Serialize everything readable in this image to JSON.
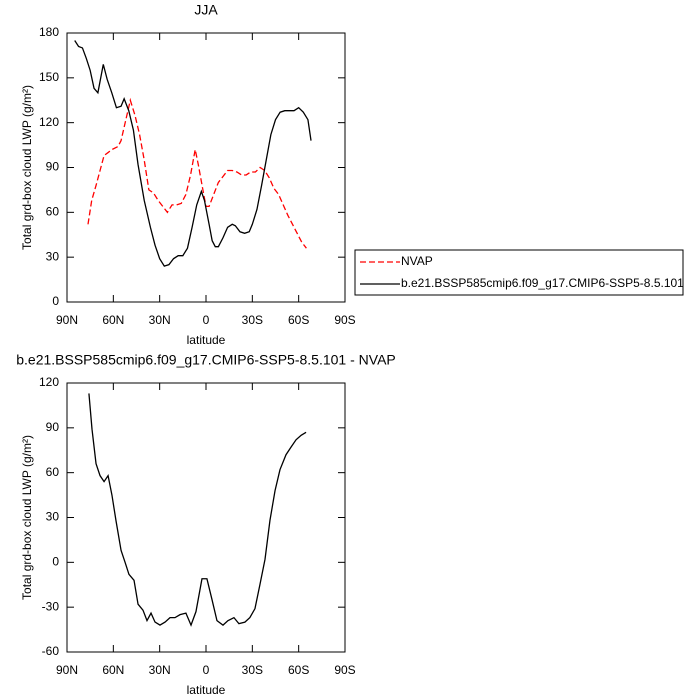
{
  "chart_data": [
    {
      "type": "line",
      "title": "JJA",
      "xlabel": "latitude",
      "ylabel": "Total grd-box cloud LWP (g/m²)",
      "xlim": [
        90,
        -90
      ],
      "xticks": [
        {
          "value": 90,
          "label": "90N"
        },
        {
          "value": 60,
          "label": "60N"
        },
        {
          "value": 30,
          "label": "30N"
        },
        0,
        {
          "value": -30,
          "label": "30S"
        },
        {
          "value": -60,
          "label": "60S"
        },
        {
          "value": -90,
          "label": "90S"
        }
      ],
      "ylim": [
        0,
        180
      ],
      "yticks": [
        0,
        30,
        60,
        90,
        120,
        150,
        180
      ],
      "legend": "right",
      "series": [
        {
          "name": "NVAP",
          "color": "#ff0000",
          "dashed": true,
          "x": [
            76.4,
            74,
            71.2,
            68.6,
            66,
            63.4,
            60.9,
            57,
            55,
            49,
            46,
            43,
            40,
            37,
            34,
            31,
            28,
            25,
            22,
            19,
            16,
            13,
            10,
            7,
            5,
            2,
            0,
            -2,
            -5,
            -8,
            -11,
            -14,
            -17,
            -20,
            -23,
            -26,
            -29,
            -32,
            -35,
            -38,
            -41,
            -44,
            -47,
            -50,
            -53,
            -58,
            -62,
            -65
          ],
          "values": [
            52,
            68,
            78,
            88,
            98,
            100,
            102,
            104,
            108,
            135,
            125,
            112,
            95,
            75,
            73,
            68,
            64,
            60,
            65,
            65,
            66,
            72,
            85,
            102,
            92,
            75,
            64,
            64,
            72,
            80,
            84,
            88,
            88,
            87,
            85,
            85,
            87,
            87,
            90,
            88,
            83,
            76,
            72,
            65,
            58,
            48,
            40,
            36
          ]
        },
        {
          "name": "b.e21.BSSP585cmip6.f09_g17.CMIP6-SSP5-8.5.101",
          "color": "#000000",
          "dashed": false,
          "x": [
            85,
            82.5,
            80,
            77.5,
            75,
            72.5,
            70,
            66.5,
            64,
            61,
            58,
            55,
            53,
            50,
            47,
            44,
            40,
            36,
            33,
            30,
            27,
            24,
            21,
            18,
            15,
            12,
            9,
            6,
            3,
            1,
            -2,
            -4,
            -6,
            -8,
            -11,
            -14,
            -17,
            -19,
            -22,
            -25,
            -28,
            -30,
            -33,
            -36,
            -39,
            -42,
            -45,
            -48,
            -51,
            -54,
            -57,
            -60,
            -63,
            -66,
            -68
          ],
          "values": [
            175,
            171,
            170,
            163,
            155,
            143,
            140,
            159,
            149,
            140,
            130,
            131,
            136,
            128,
            115,
            92,
            68,
            50,
            38,
            29,
            24,
            25,
            29,
            31,
            31,
            36,
            50,
            65,
            74,
            68,
            52,
            41,
            37,
            37,
            43,
            50,
            52,
            51,
            47,
            46,
            47,
            52,
            62,
            78,
            95,
            112,
            122,
            127,
            128,
            128,
            128,
            130,
            127,
            122,
            108
          ]
        }
      ]
    },
    {
      "type": "line",
      "title": "b.e21.BSSP585cmip6.f09_g17.CMIP6-SSP5-8.5.101 - NVAP",
      "xlabel": "latitude",
      "ylabel": "Total grd-box cloud LWP (g/m²)",
      "xlim": [
        90,
        -90
      ],
      "xticks": [
        {
          "value": 90,
          "label": "90N"
        },
        {
          "value": 60,
          "label": "60N"
        },
        {
          "value": 30,
          "label": "30N"
        },
        0,
        {
          "value": -30,
          "label": "30S"
        },
        {
          "value": -60,
          "label": "60S"
        },
        {
          "value": -90,
          "label": "90S"
        }
      ],
      "ylim": [
        -60,
        120
      ],
      "yticks": [
        -60,
        -30,
        0,
        30,
        60,
        90,
        120
      ],
      "series": [
        {
          "color": "#000000",
          "dashed": false,
          "x": [
            75.8,
            73.8,
            71.2,
            68.6,
            66,
            63.4,
            60.9,
            58.3,
            55,
            52.4,
            49.9,
            46.6,
            44,
            40.8,
            38.2,
            35.6,
            33,
            29.8,
            26.5,
            23.3,
            20.1,
            16.8,
            13,
            9.7,
            6.5,
            2.6,
            -0.6,
            -3.9,
            -7.1,
            -11,
            -14.2,
            -18.1,
            -21.3,
            -25.2,
            -28.4,
            -31.7,
            -34.9,
            -38.2,
            -41.4,
            -44.7,
            -47.9,
            -51.8,
            -55,
            -58.3,
            -61.6,
            -64.8
          ],
          "values": [
            113,
            89,
            66,
            58,
            54,
            58,
            45,
            28,
            8,
            0,
            -8,
            -12,
            -28,
            -32,
            -39,
            -34,
            -40,
            -42,
            -40,
            -37,
            -37,
            -35,
            -34,
            -42,
            -33,
            -11,
            -11,
            -25,
            -39,
            -42,
            -39,
            -37,
            -41,
            -40,
            -37,
            -31,
            -15,
            2,
            28,
            48,
            62,
            72,
            77,
            82,
            85,
            87
          ]
        }
      ]
    }
  ]
}
